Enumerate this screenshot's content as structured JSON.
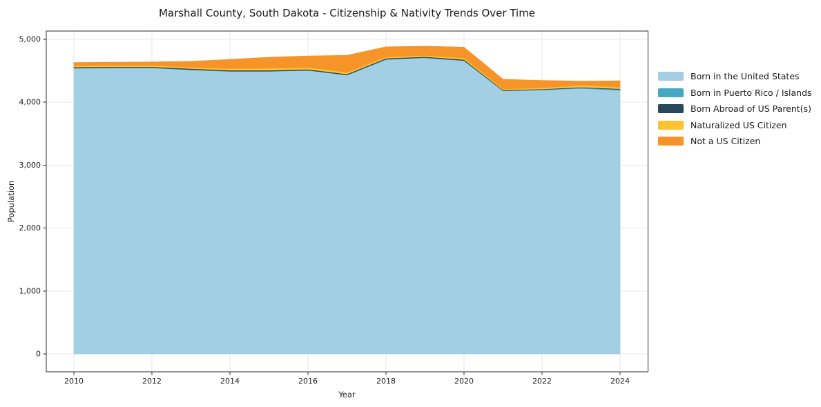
{
  "title": "Marshall County, South Dakota - Citizenship & Nativity Trends Over Time",
  "chart_data": {
    "type": "area",
    "stacked": true,
    "title": "Marshall County, South Dakota - Citizenship & Nativity Trends Over Time",
    "xlabel": "Year",
    "ylabel": "Population",
    "x": [
      2010,
      2011,
      2012,
      2013,
      2014,
      2015,
      2016,
      2017,
      2018,
      2019,
      2020,
      2021,
      2022,
      2023,
      2024
    ],
    "series": [
      {
        "name": "Born in the United States",
        "color": "#a3cfe4",
        "values": [
          4540,
          4545,
          4545,
          4515,
          4490,
          4490,
          4505,
          4430,
          4680,
          4705,
          4660,
          4180,
          4195,
          4220,
          4190
        ]
      },
      {
        "name": "Born in Puerto Rico / Islands",
        "color": "#46a8c2",
        "values": [
          5,
          5,
          5,
          5,
          5,
          5,
          5,
          5,
          5,
          5,
          5,
          5,
          5,
          10,
          15
        ]
      },
      {
        "name": "Born Abroad of US Parent(s)",
        "color": "#27495a",
        "values": [
          15,
          15,
          15,
          15,
          15,
          15,
          15,
          15,
          15,
          15,
          15,
          10,
          10,
          10,
          10
        ]
      },
      {
        "name": "Naturalized US Citizen",
        "color": "#fdc330",
        "values": [
          20,
          20,
          20,
          20,
          25,
          30,
          30,
          25,
          20,
          20,
          25,
          15,
          20,
          30,
          25
        ]
      },
      {
        "name": "Not a US Citizen",
        "color": "#f79429",
        "values": [
          50,
          50,
          55,
          95,
          145,
          175,
          180,
          270,
          160,
          145,
          170,
          155,
          115,
          65,
          100
        ]
      }
    ],
    "totals": [
      4630,
      4635,
      4640,
      4650,
      4680,
      4715,
      4735,
      4745,
      4880,
      4890,
      4875,
      4365,
      4345,
      4335,
      4340
    ],
    "xticks": {
      "values": [
        2010,
        2012,
        2014,
        2016,
        2018,
        2020,
        2022,
        2024
      ],
      "labels": [
        "2010",
        "2012",
        "2014",
        "2016",
        "2018",
        "2020",
        "2022",
        "2024"
      ]
    },
    "yticks": {
      "values": [
        0,
        1000,
        2000,
        3000,
        4000,
        5000
      ],
      "labels": [
        "0",
        "1,000",
        "2,000",
        "3,000",
        "4,000",
        "5,000"
      ]
    },
    "xlim": [
      2009.3,
      2024.7
    ],
    "ylim": [
      -296,
      5121
    ],
    "grid": true,
    "legend_position": "right-outside"
  },
  "colors": {
    "grid": "#e7e7ea",
    "spine": "#2b2b2b",
    "tick_text": "#1b1b1b",
    "background": "#ffffff"
  }
}
